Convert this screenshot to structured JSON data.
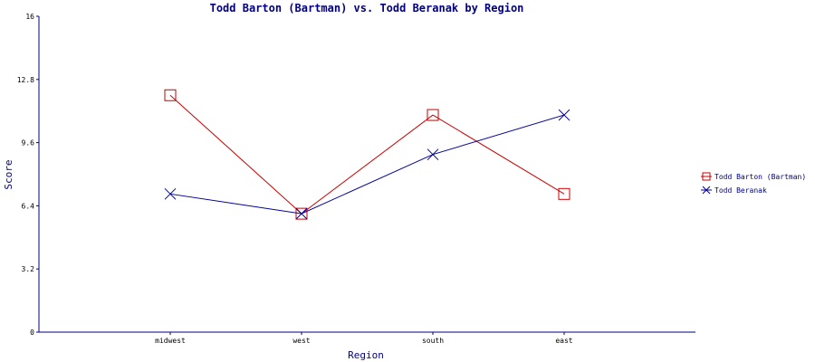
{
  "chart_data": {
    "type": "line",
    "title": "Todd Barton (Bartman) vs. Todd Beranak by Region",
    "xlabel": "Region",
    "ylabel": "Score",
    "categories": [
      "midwest",
      "west",
      "south",
      "east"
    ],
    "ylim": [
      0,
      16
    ],
    "yticks": [
      "0",
      "3.2",
      "6.4",
      "9.6",
      "12.8",
      "16"
    ],
    "grid": false,
    "legend_position": "right",
    "series": [
      {
        "name": "Todd Barton (Bartman)",
        "values": [
          12.0,
          6.0,
          11.0,
          7.0
        ],
        "color": "#cc0000",
        "marker": "square"
      },
      {
        "name": "Todd Beranak",
        "values": [
          7.0,
          6.0,
          9.0,
          11.0
        ],
        "color": "#000099",
        "marker": "x"
      }
    ]
  },
  "colors": {
    "axis": "#000080",
    "title": "#000080"
  }
}
